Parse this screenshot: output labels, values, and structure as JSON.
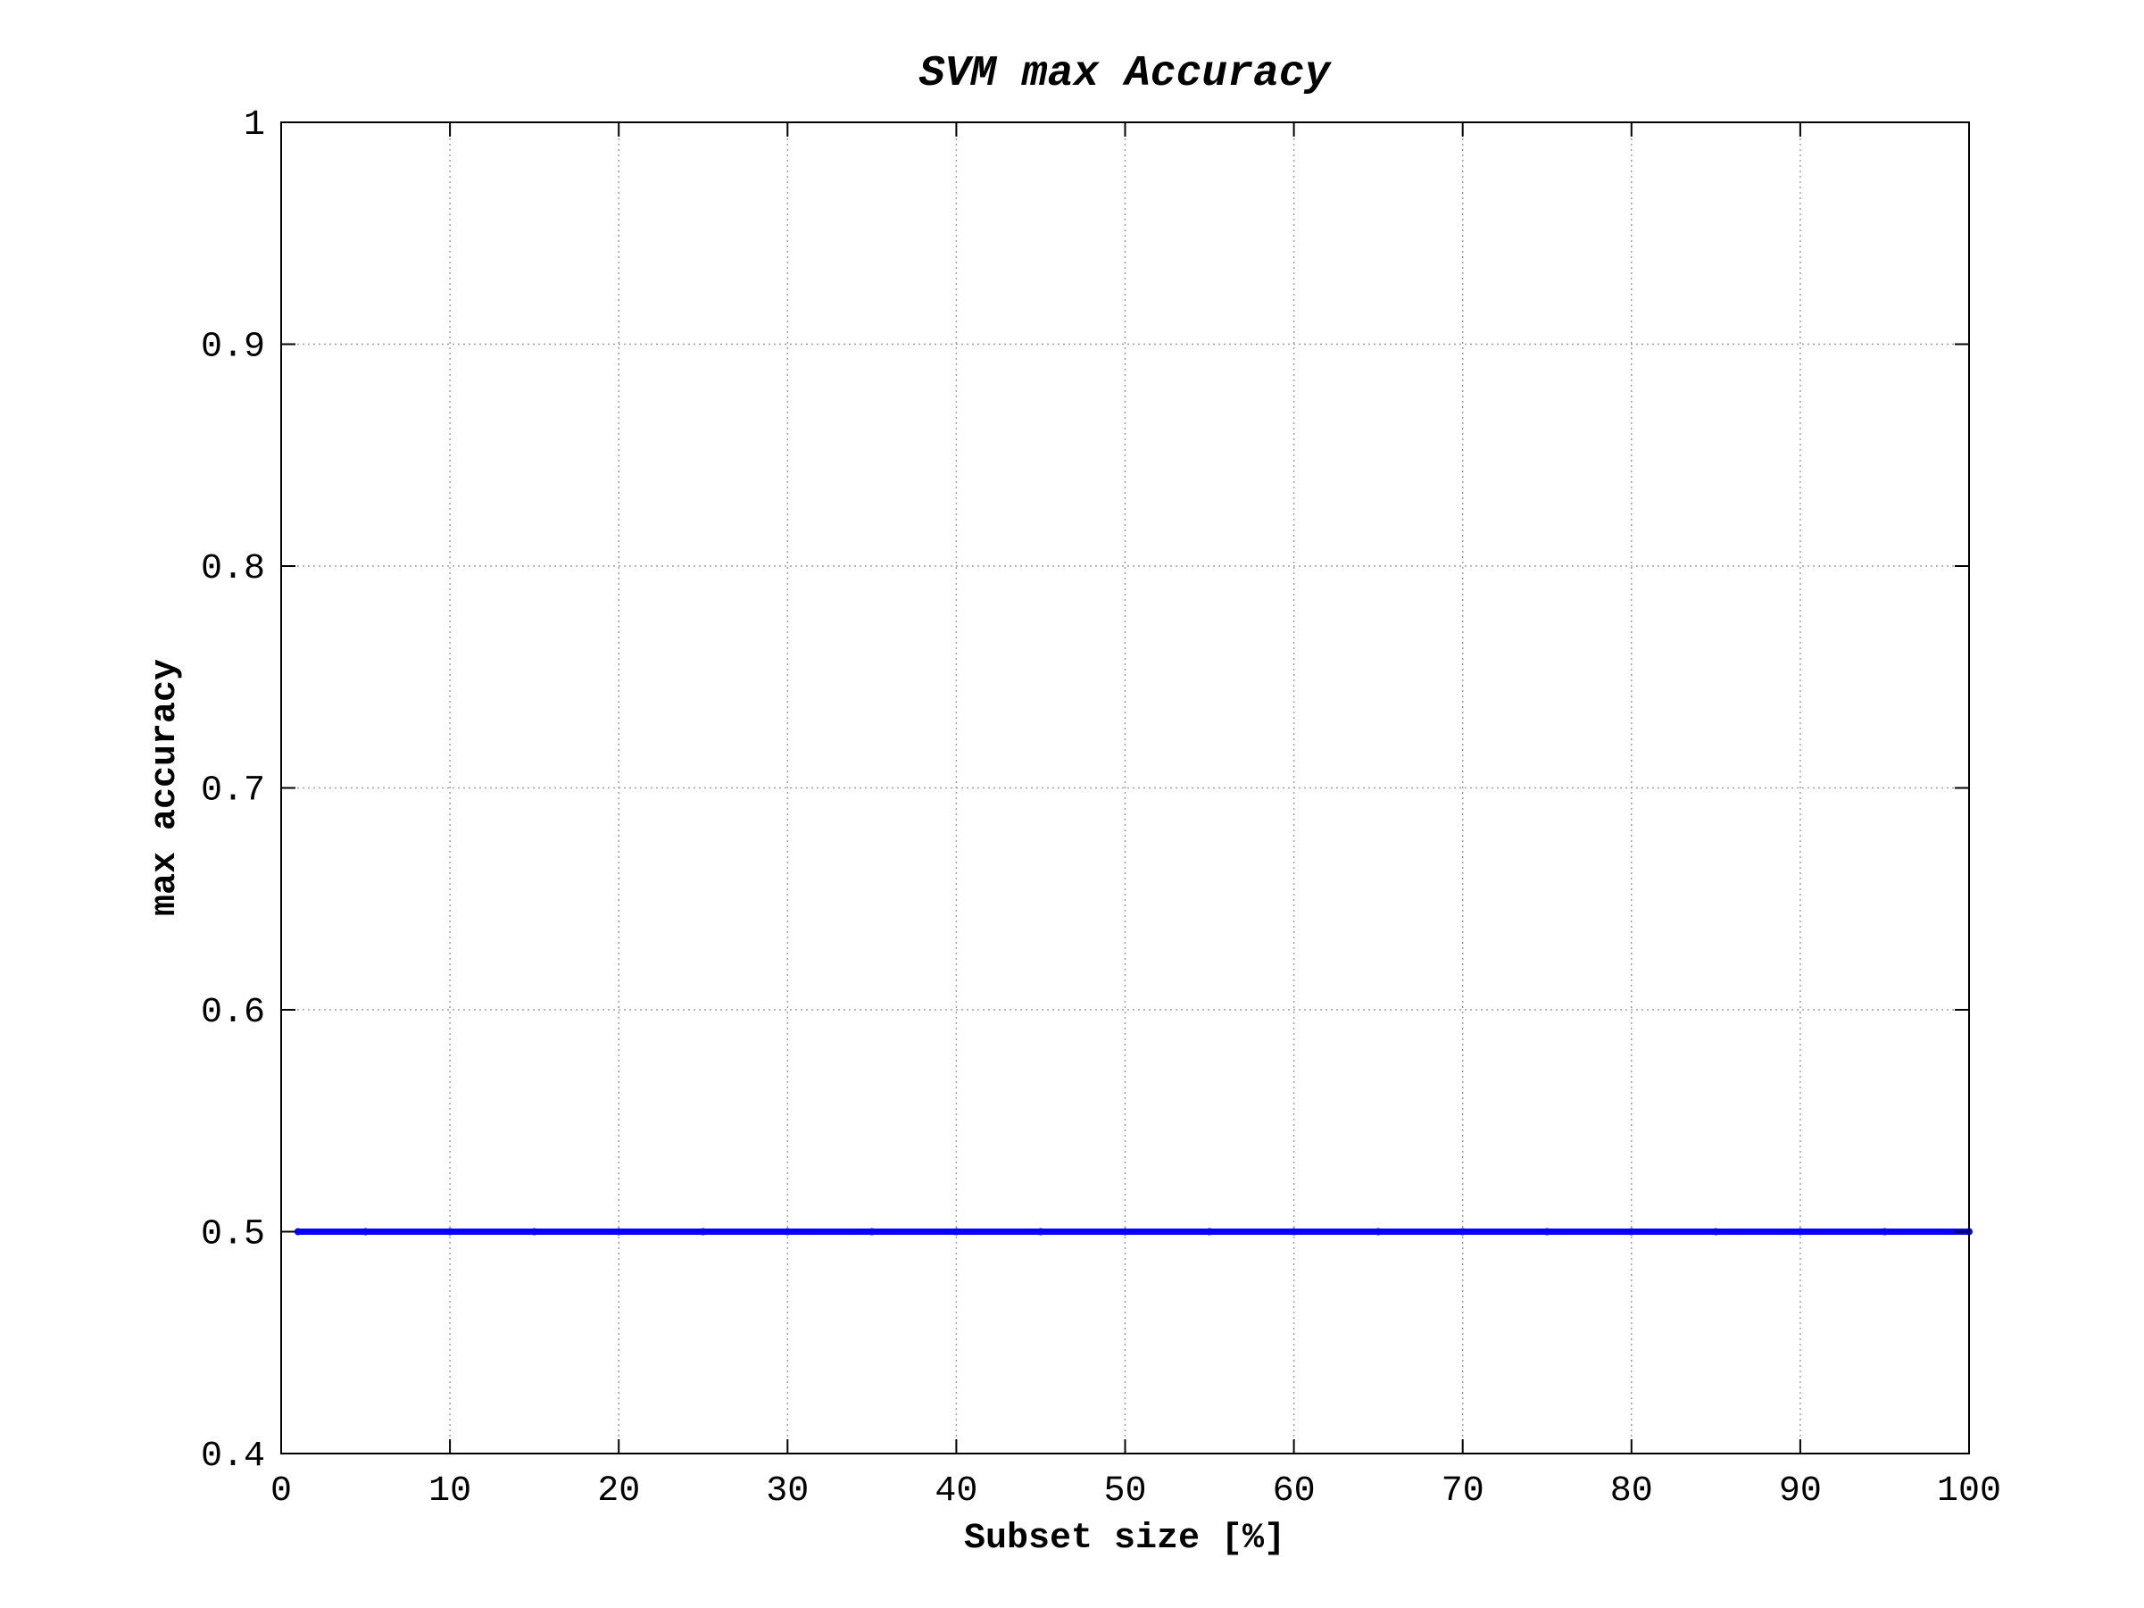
{
  "chart_data": {
    "type": "line",
    "title": "SVM max Accuracy",
    "xlabel": "Subset size [%]",
    "ylabel": "max accuracy",
    "xlim": [
      0,
      100
    ],
    "ylim": [
      0.4,
      1
    ],
    "xticks": [
      0,
      10,
      20,
      30,
      40,
      50,
      60,
      70,
      80,
      90,
      100
    ],
    "yticks": [
      0.4,
      0.5,
      0.6,
      0.7,
      0.8,
      0.9,
      1
    ],
    "ytick_labels": [
      "0.4",
      "0.5",
      "0.6",
      "0.7",
      "0.8",
      "0.9",
      "1"
    ],
    "grid": true,
    "legend": "none",
    "series": [
      {
        "color": "#0000ff",
        "x": [
          1,
          5,
          10,
          15,
          20,
          25,
          30,
          35,
          40,
          45,
          50,
          55,
          60,
          65,
          70,
          75,
          80,
          85,
          90,
          95,
          100
        ],
        "y": [
          0.5,
          0.5,
          0.5,
          0.5,
          0.5,
          0.5,
          0.5,
          0.5,
          0.5,
          0.5,
          0.5,
          0.5,
          0.5,
          0.5,
          0.5,
          0.5,
          0.5,
          0.5,
          0.5,
          0.5,
          0.5
        ]
      }
    ]
  }
}
